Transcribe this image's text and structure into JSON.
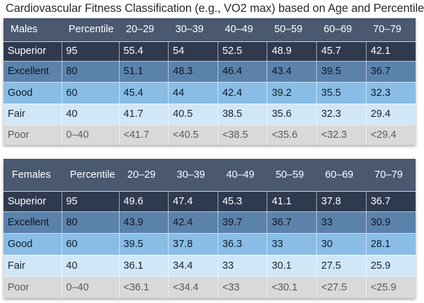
{
  "title": "Cardiovascular Fitness Classification (e.g., VO2 max) based on Age and Percentile",
  "tables": [
    {
      "id": "males",
      "header": [
        "Males",
        "Percentile",
        "20–29",
        "30–39",
        "40–49",
        "50–59",
        "60–69",
        "70–79"
      ],
      "rows": [
        {
          "category": "Superior",
          "percentile": "95",
          "values": [
            "55.4",
            "54",
            "52.5",
            "48.9",
            "45.7",
            "42.1"
          ]
        },
        {
          "category": "Excellent",
          "percentile": "80",
          "values": [
            "51.1",
            "48.3",
            "46.4",
            "43.4",
            "39.5",
            "36.7"
          ]
        },
        {
          "category": "Good",
          "percentile": "60",
          "values": [
            "45.4",
            "44",
            "42.4",
            "39.2",
            "35.5",
            "32.3"
          ]
        },
        {
          "category": "Fair",
          "percentile": "40",
          "values": [
            "41.7",
            "40.5",
            "38.5",
            "35.6",
            "32.3",
            "29.4"
          ]
        },
        {
          "category": "Poor",
          "percentile": "0–40",
          "values": [
            "<41.7",
            "<40.5",
            "<38.5",
            "<35.6",
            "<32.3",
            "<29.4"
          ]
        }
      ]
    },
    {
      "id": "females",
      "header": [
        "Females",
        "Percentile",
        "20–29",
        "30–39",
        "40–49",
        "50–59",
        "60–69",
        "70–79"
      ],
      "rows": [
        {
          "category": "Superior",
          "percentile": "95",
          "values": [
            "49.6",
            "47.4",
            "45.3",
            "41.1",
            "37.8",
            "36.7"
          ]
        },
        {
          "category": "Excellent",
          "percentile": "80",
          "values": [
            "43.9",
            "42.4",
            "39.7",
            "36.7",
            "33",
            "30.9"
          ]
        },
        {
          "category": "Good",
          "percentile": "60",
          "values": [
            "39.5",
            "37.8",
            "36.3",
            "33",
            "30",
            "28.1"
          ]
        },
        {
          "category": "Fair",
          "percentile": "40",
          "values": [
            "36.1",
            "34.4",
            "33",
            "30.1",
            "27.5",
            "25.9"
          ]
        },
        {
          "category": "Poor",
          "percentile": "0–40",
          "values": [
            "<36.1",
            "<34.4",
            "<33",
            "<30.1",
            "<27.5",
            "<25.9"
          ]
        }
      ]
    }
  ],
  "colors": {
    "header": "#4a5870",
    "superior": "#2f3a4f",
    "excellent": "#5b82ab",
    "good": "#89bde6",
    "fair": "#d0e7f8",
    "poor": "#d9d9d9"
  }
}
